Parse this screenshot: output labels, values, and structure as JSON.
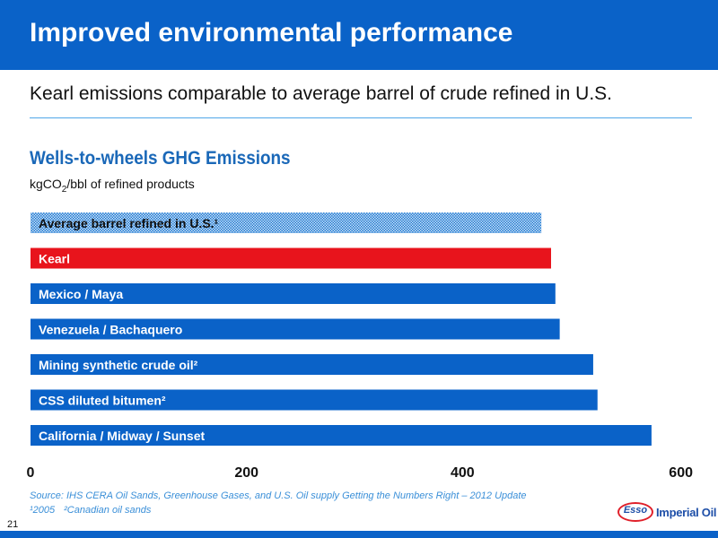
{
  "header": {
    "title": "Improved environmental performance"
  },
  "subtitle": "Kearl emissions comparable to average barrel of crude refined in U.S.",
  "chart_title": "Wells-to-wheels GHG Emissions",
  "units": {
    "prefix": "kgCO",
    "subscript": "2",
    "suffix": "/bbl of refined products"
  },
  "source": "Source: IHS CERA Oil Sands, Greenhouse Gases, and U.S. Oil supply Getting the Numbers Right – 2012 Update",
  "footnotes": {
    "note1": "¹2005",
    "note2": "²Canadian oil sands"
  },
  "page_number": "21",
  "logo": {
    "mark": "Esso",
    "name": "Imperial Oil"
  },
  "colors": {
    "header": "#0a62c8",
    "bar": "#0a62c8",
    "highlight": "#e8141c",
    "average": "#1e78d2"
  },
  "chart_data": {
    "type": "bar",
    "orientation": "horizontal",
    "title": "Wells-to-wheels GHG Emissions",
    "ylabel": "kgCO2/bbl of refined products",
    "xlim": [
      0,
      600
    ],
    "ticks": [
      0,
      200,
      400,
      600
    ],
    "grid": false,
    "categories": [
      "Average barrel refined in U.S.¹",
      "Kearl",
      "Mexico / Maya",
      "Venezuela / Bachaquero",
      "Mining synthetic crude oil²",
      "CSS diluted bitumen²",
      "California / Midway / Sunset"
    ],
    "values": [
      473,
      482,
      486,
      490,
      521,
      525,
      575
    ],
    "styles": [
      "average",
      "highlight",
      "bar",
      "bar",
      "bar",
      "bar",
      "bar"
    ]
  }
}
